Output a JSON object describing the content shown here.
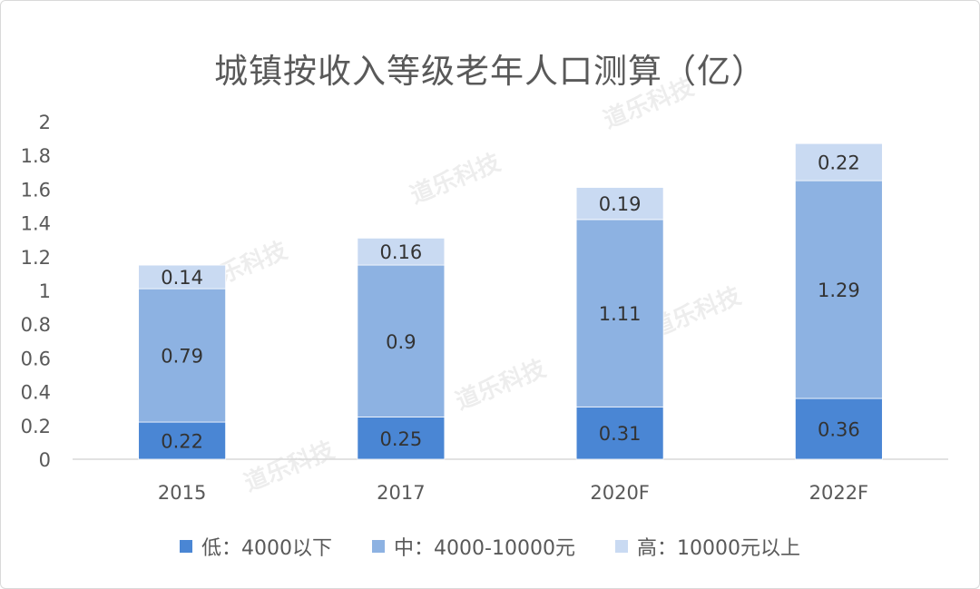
{
  "chart_data": {
    "type": "bar",
    "stacked": true,
    "title": "城镇按收入等级老年人口测算（亿）",
    "categories": [
      "2015",
      "2017",
      "2020F",
      "2022F"
    ],
    "series": [
      {
        "name": "低：4000以下",
        "color": "#4a86d4",
        "values": [
          0.22,
          0.25,
          0.31,
          0.36
        ]
      },
      {
        "name": "中：4000-10000元",
        "color": "#8db2e2",
        "values": [
          0.79,
          0.9,
          1.11,
          1.29
        ]
      },
      {
        "name": "高：10000元以上",
        "color": "#c9daf2",
        "values": [
          0.14,
          0.16,
          0.19,
          0.22
        ]
      }
    ],
    "y_ticks": [
      "0",
      "0.2",
      "0.4",
      "0.6",
      "0.8",
      "1",
      "1.2",
      "1.4",
      "1.6",
      "1.8",
      "2"
    ],
    "ylim": [
      0,
      2
    ],
    "grid": false,
    "legend_position": "bottom"
  },
  "watermark": "道乐科技"
}
